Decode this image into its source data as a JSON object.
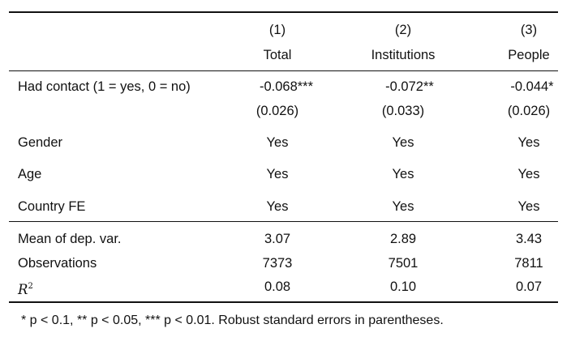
{
  "table": {
    "columns": [
      {
        "number": "(1)",
        "name": "Total"
      },
      {
        "number": "(2)",
        "name": "Institutions"
      },
      {
        "number": "(3)",
        "name": "People"
      }
    ],
    "coefficient_row": {
      "label": "Had contact (1 = yes, 0 = no)",
      "estimates": [
        "-0.068***",
        "-0.072**",
        "-0.044*"
      ],
      "std_errors": [
        "(0.026)",
        "(0.033)",
        "(0.026)"
      ]
    },
    "controls": [
      {
        "label": "Gender",
        "values": [
          "Yes",
          "Yes",
          "Yes"
        ]
      },
      {
        "label": "Age",
        "values": [
          "Yes",
          "Yes",
          "Yes"
        ]
      },
      {
        "label": "Country FE",
        "values": [
          "Yes",
          "Yes",
          "Yes"
        ]
      }
    ],
    "stats": [
      {
        "label": "Mean of dep. var.",
        "values": [
          "3.07",
          "2.89",
          "3.43"
        ]
      },
      {
        "label": "Observations",
        "values": [
          "7373",
          "7501",
          "7811"
        ]
      },
      {
        "label_main": "R",
        "label_sup": "2",
        "values": [
          "0.08",
          "0.10",
          "0.07"
        ]
      }
    ]
  },
  "footnote": "* p < 0.1, ** p < 0.05, *** p < 0.01. Robust standard errors in parentheses."
}
